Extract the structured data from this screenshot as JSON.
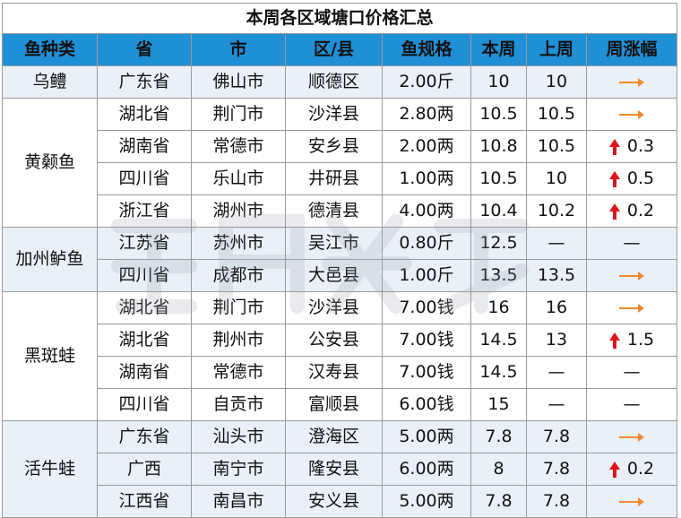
{
  "title": "本周各区域塘口价格汇总",
  "headers": [
    "鱼种类",
    "省",
    "市",
    "区/县",
    "鱼规格",
    "本周",
    "上周",
    "周涨幅"
  ],
  "groups": [
    {
      "fish": "乌鳢",
      "rows": [
        {
          "province": "广东省",
          "city": "佛山市",
          "county": "顺德区",
          "spec": "2.00斤",
          "this_week": "10",
          "last_week": "10",
          "change": "",
          "change_type": "flat"
        }
      ]
    },
    {
      "fish": "黄颡鱼",
      "rows": [
        {
          "province": "湖北省",
          "city": "荆门市",
          "county": "沙洋县",
          "spec": "2.80两",
          "this_week": "10.5",
          "last_week": "10.5",
          "change": "",
          "change_type": "flat"
        },
        {
          "province": "湖南省",
          "city": "常德市",
          "county": "安乡县",
          "spec": "2.00两",
          "this_week": "10.8",
          "last_week": "10.5",
          "change": "0.3",
          "change_type": "up"
        },
        {
          "province": "四川省",
          "city": "乐山市",
          "county": "井研县",
          "spec": "1.00两",
          "this_week": "10.5",
          "last_week": "10",
          "change": "0.5",
          "change_type": "up"
        },
        {
          "province": "浙江省",
          "city": "湖州市",
          "county": "德清县",
          "spec": "4.00两",
          "this_week": "10.4",
          "last_week": "10.2",
          "change": "0.2",
          "change_type": "up"
        }
      ]
    },
    {
      "fish": "加州鲈鱼",
      "rows": [
        {
          "province": "江苏省",
          "city": "苏州市",
          "county": "吴江市",
          "spec": "0.80斤",
          "this_week": "12.5",
          "last_week": "—",
          "change": "—",
          "change_type": "none"
        },
        {
          "province": "四川省",
          "city": "成都市",
          "county": "大邑县",
          "spec": "1.00斤",
          "this_week": "13.5",
          "last_week": "13.5",
          "change": "",
          "change_type": "flat"
        }
      ]
    },
    {
      "fish": "黑斑蛙",
      "rows": [
        {
          "province": "湖北省",
          "city": "荆门市",
          "county": "沙洋县",
          "spec": "7.00钱",
          "this_week": "16",
          "last_week": "16",
          "change": "",
          "change_type": "flat"
        },
        {
          "province": "湖北省",
          "city": "荆州市",
          "county": "公安县",
          "spec": "7.00钱",
          "this_week": "14.5",
          "last_week": "13",
          "change": "1.5",
          "change_type": "up"
        },
        {
          "province": "湖南省",
          "city": "常德市",
          "county": "汉寿县",
          "spec": "7.00钱",
          "this_week": "14.5",
          "last_week": "—",
          "change": "—",
          "change_type": "none"
        },
        {
          "province": "四川省",
          "city": "自贡市",
          "county": "富顺县",
          "spec": "6.00钱",
          "this_week": "15",
          "last_week": "—",
          "change": "—",
          "change_type": "none"
        }
      ]
    },
    {
      "fish": "活牛蛙",
      "rows": [
        {
          "province": "广东省",
          "city": "汕头市",
          "county": "澄海区",
          "spec": "5.00两",
          "this_week": "7.8",
          "last_week": "7.8",
          "change": "",
          "change_type": "flat"
        },
        {
          "province": "广西",
          "city": "南宁市",
          "county": "隆安县",
          "spec": "6.00两",
          "this_week": "8",
          "last_week": "7.8",
          "change": "0.2",
          "change_type": "up"
        },
        {
          "province": "江西省",
          "city": "南昌市",
          "county": "安义县",
          "spec": "5.00两",
          "this_week": "7.8",
          "last_week": "7.8",
          "change": "",
          "change_type": "flat"
        }
      ]
    }
  ],
  "colors": {
    "header_bg": "#1f8fd6",
    "band_bg": "#e9f0f8",
    "red": "#e0141a",
    "arrow": "#f08a2e"
  },
  "icons": {
    "flat": "right-arrow-icon",
    "up": "up-arrow-icon"
  }
}
